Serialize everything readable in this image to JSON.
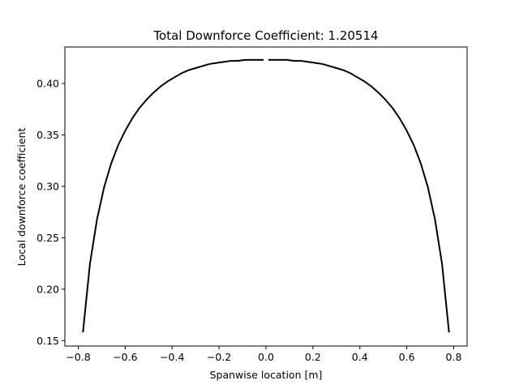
{
  "chart_data": {
    "type": "line",
    "title": "Total Downforce Coefficient: 1.20514",
    "xlabel": "Spanwise location [m]",
    "ylabel": "Local downforce coefficient",
    "xlim": [
      -0.857,
      0.857
    ],
    "ylim": [
      0.1447,
      0.4355
    ],
    "xticks": [
      -0.8,
      -0.6,
      -0.4,
      -0.2,
      0.0,
      0.2,
      0.4,
      0.6,
      0.8
    ],
    "xtick_labels": [
      "−0.8",
      "−0.6",
      "−0.4",
      "−0.2",
      "0.0",
      "0.2",
      "0.4",
      "0.6",
      "0.8"
    ],
    "yticks": [
      0.15,
      0.2,
      0.25,
      0.3,
      0.35,
      0.4
    ],
    "ytick_labels": [
      "0.15",
      "0.20",
      "0.25",
      "0.30",
      "0.35",
      "0.40"
    ],
    "grid": false,
    "line_color": "#000000",
    "series": [
      {
        "x": [
          -0.78,
          -0.75,
          -0.72,
          -0.69,
          -0.66,
          -0.63,
          -0.6,
          -0.57,
          -0.54,
          -0.51,
          -0.48,
          -0.45,
          -0.42,
          -0.39,
          -0.36,
          -0.33,
          -0.3,
          -0.27,
          -0.24,
          -0.21,
          -0.18,
          -0.15,
          -0.12,
          -0.09,
          -0.06,
          -0.03,
          -0.01
        ],
        "y": [
          0.158,
          0.225,
          0.268,
          0.299,
          0.322,
          0.34,
          0.354,
          0.366,
          0.376,
          0.384,
          0.391,
          0.397,
          0.402,
          0.406,
          0.41,
          0.413,
          0.415,
          0.417,
          0.419,
          0.42,
          0.421,
          0.422,
          0.422,
          0.423,
          0.423,
          0.423,
          0.423
        ]
      },
      {
        "x": [
          0.01,
          0.03,
          0.06,
          0.09,
          0.12,
          0.15,
          0.18,
          0.21,
          0.24,
          0.27,
          0.3,
          0.33,
          0.36,
          0.39,
          0.42,
          0.45,
          0.48,
          0.51,
          0.54,
          0.57,
          0.6,
          0.63,
          0.66,
          0.69,
          0.72,
          0.75,
          0.78
        ],
        "y": [
          0.423,
          0.423,
          0.423,
          0.423,
          0.422,
          0.422,
          0.421,
          0.42,
          0.419,
          0.417,
          0.415,
          0.413,
          0.41,
          0.406,
          0.402,
          0.397,
          0.391,
          0.384,
          0.376,
          0.366,
          0.354,
          0.34,
          0.322,
          0.299,
          0.268,
          0.225,
          0.158
        ]
      }
    ]
  }
}
